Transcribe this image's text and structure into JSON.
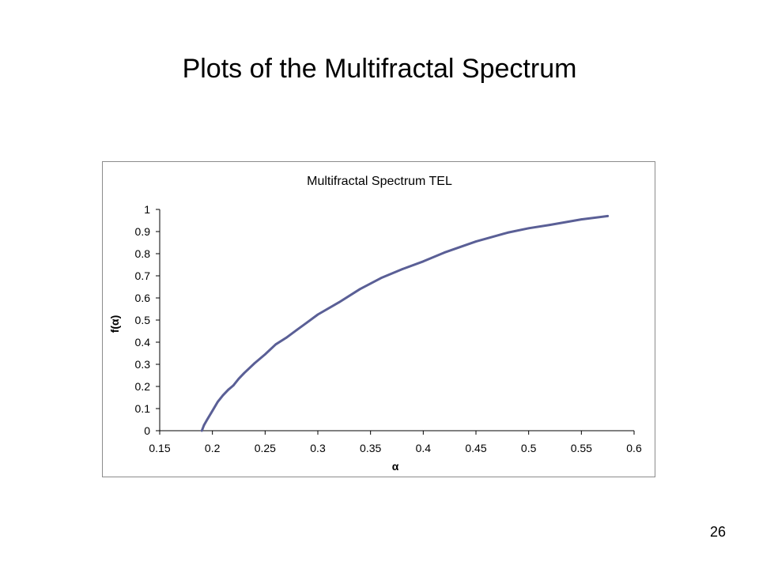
{
  "slide": {
    "title": "Plots of the Multifractal Spectrum",
    "page_number": "26"
  },
  "chart_data": {
    "type": "line",
    "title": "Multifractal Spectrum TEL",
    "xlabel": "α",
    "ylabel": "f(α)",
    "xlim": [
      0.15,
      0.6
    ],
    "ylim": [
      0,
      1
    ],
    "x_ticks": [
      0.15,
      0.2,
      0.25,
      0.3,
      0.35,
      0.4,
      0.45,
      0.5,
      0.55,
      0.6
    ],
    "x_tick_labels": [
      "0.15",
      "0.2",
      "0.25",
      "0.3",
      "0.35",
      "0.4",
      "0.45",
      "0.5",
      "0.55",
      "0.6"
    ],
    "y_ticks": [
      0,
      0.1,
      0.2,
      0.3,
      0.4,
      0.5,
      0.6,
      0.7,
      0.8,
      0.9,
      1
    ],
    "y_tick_labels": [
      "0",
      "0.1",
      "0.2",
      "0.3",
      "0.4",
      "0.5",
      "0.6",
      "0.7",
      "0.8",
      "0.9",
      "1"
    ],
    "grid": false,
    "legend": "none",
    "line_color": "#5a5f96",
    "series": [
      {
        "x": [
          0.19,
          0.192,
          0.195,
          0.2,
          0.205,
          0.21,
          0.215,
          0.22,
          0.225,
          0.23,
          0.24,
          0.25,
          0.26,
          0.27,
          0.28,
          0.29,
          0.3,
          0.32,
          0.34,
          0.36,
          0.38,
          0.4,
          0.42,
          0.45,
          0.48,
          0.5,
          0.52,
          0.55,
          0.575
        ],
        "y": [
          0.0,
          0.025,
          0.05,
          0.09,
          0.13,
          0.16,
          0.185,
          0.205,
          0.235,
          0.26,
          0.305,
          0.345,
          0.39,
          0.42,
          0.455,
          0.49,
          0.525,
          0.58,
          0.64,
          0.69,
          0.73,
          0.765,
          0.805,
          0.855,
          0.895,
          0.915,
          0.93,
          0.955,
          0.97
        ]
      }
    ]
  }
}
